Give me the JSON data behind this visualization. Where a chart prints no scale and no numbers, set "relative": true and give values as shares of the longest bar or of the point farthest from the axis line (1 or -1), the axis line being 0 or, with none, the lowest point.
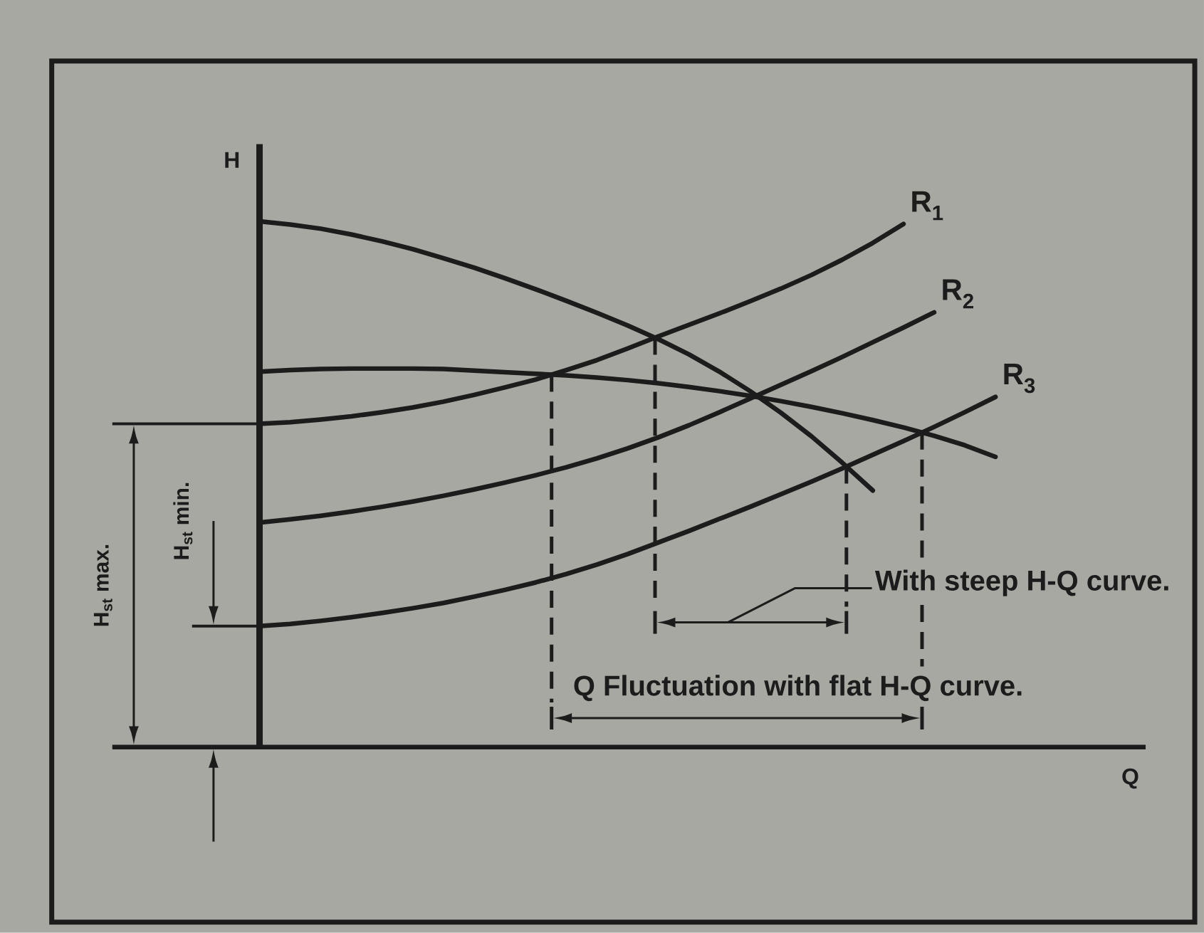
{
  "chart_data": {
    "type": "line",
    "relative": true,
    "xlabel": "Q",
    "ylabel": "H",
    "line_style": "solid",
    "categories": [
      null,
      null,
      null,
      null,
      null,
      null,
      null,
      null,
      null,
      null,
      null,
      null,
      null,
      null,
      null,
      null,
      null,
      null,
      null,
      null,
      null,
      null,
      null,
      null,
      null
    ],
    "series": [
      {
        "name": "R$_{1}$",
        "color": "#1c1c1c",
        "values": [
          0.615,
          0.618,
          0.623,
          0.629,
          0.637,
          0.646,
          0.657,
          0.67,
          0.684,
          0.699,
          0.717,
          0.736,
          0.758,
          0.781,
          0.803,
          0.825,
          0.848,
          0.872,
          0.898,
          0.927,
          0.959,
          0.995,
          null,
          null,
          null
        ]
      },
      {
        "name": "R$_{2}$",
        "color": "#1c1c1c",
        "values": [
          0.427,
          0.433,
          0.44,
          0.448,
          0.457,
          0.467,
          0.478,
          0.49,
          0.503,
          0.517,
          0.532,
          0.549,
          0.568,
          0.589,
          0.612,
          0.637,
          0.663,
          0.689,
          0.715,
          0.742,
          0.77,
          0.798,
          0.827,
          null,
          null
        ]
      },
      {
        "name": "R$_{3}$",
        "color": "#1c1c1c",
        "values": [
          0.23,
          0.234,
          0.24,
          0.247,
          0.255,
          0.264,
          0.274,
          0.286,
          0.299,
          0.313,
          0.329,
          0.347,
          0.367,
          0.389,
          0.411,
          0.434,
          0.457,
          0.481,
          0.505,
          0.53,
          0.556,
          0.582,
          0.609,
          0.637,
          0.666
        ]
      },
      {
        "color": "#1c1c1c",
        "values": [
          1.0,
          0.994,
          0.986,
          0.975,
          0.962,
          0.947,
          0.93,
          0.912,
          0.892,
          0.871,
          0.849,
          0.826,
          0.802,
          0.776,
          0.747,
          0.714,
          0.677,
          0.636,
          0.591,
          0.541,
          0.488,
          null,
          null,
          null,
          null
        ]
      },
      {
        "color": "#1c1c1c",
        "values": [
          0.714,
          0.717,
          0.719,
          0.72,
          0.72,
          0.72,
          0.719,
          0.716,
          0.713,
          0.71,
          0.707,
          0.703,
          0.698,
          0.692,
          0.685,
          0.677,
          0.668,
          0.658,
          0.647,
          0.635,
          0.622,
          0.608,
          0.592,
          0.574,
          0.552
        ]
      }
    ],
    "annotations": [
      "H$_{st}$ max.",
      "H$_{st}$ min.",
      "With steep H-Q curve.",
      "Q Fluctuation with flat H-Q curve."
    ]
  }
}
